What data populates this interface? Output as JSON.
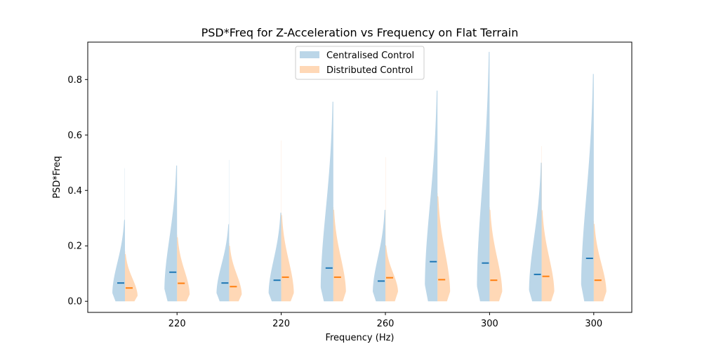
{
  "chart_data": {
    "type": "split-violin",
    "title": "PSD*Freq for Z-Acceleration vs Frequency on Flat Terrain",
    "xlabel": "Frequency (Hz)",
    "ylabel": "PSD*Freq",
    "ylim": [
      -0.04,
      0.935
    ],
    "yticks": [
      0.0,
      0.2,
      0.4,
      0.6,
      0.8
    ],
    "ytick_labels": [
      "0.0",
      "0.2",
      "0.4",
      "0.6",
      "0.8"
    ],
    "xtick_labels": [
      "220",
      "220",
      "260",
      "300",
      "300"
    ],
    "xtick_groups": [
      1,
      3,
      5,
      7,
      9
    ],
    "legend": {
      "placement": "top-center",
      "entries": [
        "Centralised Control",
        "Distributed Control"
      ]
    },
    "colors": {
      "centralised_fill": "#1f77b4",
      "distributed_fill": "#ff7f0e",
      "centralised_median": "#1f77b4",
      "distributed_median": "#ff7f0e"
    },
    "groups": [
      {
        "centralised": {
          "median": 0.066,
          "max": 0.295,
          "tail": 0.48,
          "mode": 0.03
        },
        "distributed": {
          "median": 0.048,
          "max": 0.17,
          "tail": 0.18,
          "mode": 0.02
        }
      },
      {
        "centralised": {
          "median": 0.105,
          "max": 0.49,
          "tail": 0.49,
          "mode": 0.045
        },
        "distributed": {
          "median": 0.065,
          "max": 0.23,
          "tail": 0.24,
          "mode": 0.025
        }
      },
      {
        "centralised": {
          "median": 0.066,
          "max": 0.28,
          "tail": 0.51,
          "mode": 0.03
        },
        "distributed": {
          "median": 0.053,
          "max": 0.2,
          "tail": 0.21,
          "mode": 0.025
        }
      },
      {
        "centralised": {
          "median": 0.076,
          "max": 0.32,
          "tail": 0.32,
          "mode": 0.03
        },
        "distributed": {
          "median": 0.087,
          "max": 0.31,
          "tail": 0.58,
          "mode": 0.03
        }
      },
      {
        "centralised": {
          "median": 0.12,
          "max": 0.72,
          "tail": 0.72,
          "mode": 0.05
        },
        "distributed": {
          "median": 0.087,
          "max": 0.33,
          "tail": 0.34,
          "mode": 0.035
        }
      },
      {
        "centralised": {
          "median": 0.073,
          "max": 0.33,
          "tail": 0.33,
          "mode": 0.035
        },
        "distributed": {
          "median": 0.085,
          "max": 0.2,
          "tail": 0.52,
          "mode": 0.035
        }
      },
      {
        "centralised": {
          "median": 0.143,
          "max": 0.76,
          "tail": 0.76,
          "mode": 0.06
        },
        "distributed": {
          "median": 0.078,
          "max": 0.38,
          "tail": 0.39,
          "mode": 0.035
        }
      },
      {
        "centralised": {
          "median": 0.138,
          "max": 0.9,
          "tail": 0.9,
          "mode": 0.055
        },
        "distributed": {
          "median": 0.076,
          "max": 0.33,
          "tail": 0.34,
          "mode": 0.035
        }
      },
      {
        "centralised": {
          "median": 0.097,
          "max": 0.5,
          "tail": 0.5,
          "mode": 0.04
        },
        "distributed": {
          "median": 0.09,
          "max": 0.33,
          "tail": 0.56,
          "mode": 0.035
        }
      },
      {
        "centralised": {
          "median": 0.155,
          "max": 0.82,
          "tail": 0.82,
          "mode": 0.06
        },
        "distributed": {
          "median": 0.076,
          "max": 0.28,
          "tail": 0.29,
          "mode": 0.035
        }
      }
    ]
  }
}
